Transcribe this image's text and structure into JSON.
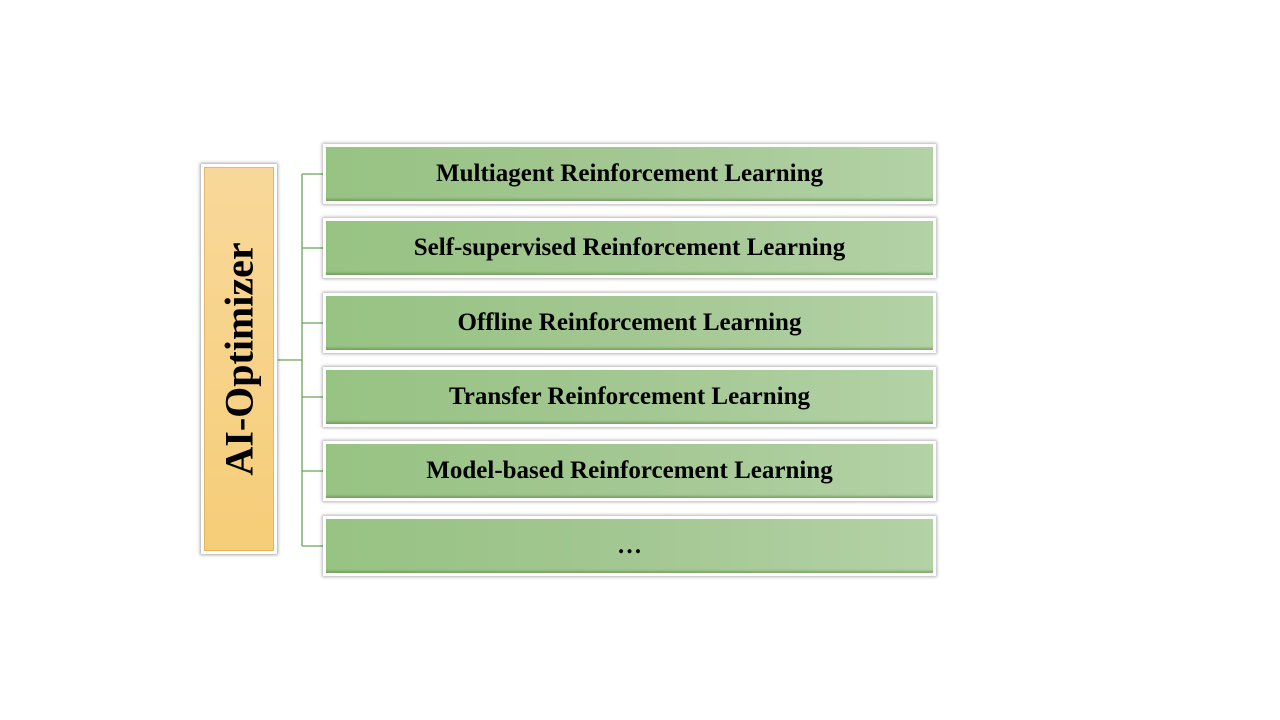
{
  "diagram": {
    "root": {
      "label": "AI-Optimizer"
    },
    "children": [
      {
        "label": "Multiagent Reinforcement Learning"
      },
      {
        "label": "Self-supervised Reinforcement Learning"
      },
      {
        "label": "Offline Reinforcement Learning"
      },
      {
        "label": "Transfer Reinforcement Learning"
      },
      {
        "label": "Model-based Reinforcement Learning"
      },
      {
        "label": "…"
      }
    ],
    "colors": {
      "root_fill": "#f6cd78",
      "child_fill": "#a3c792",
      "connector": "#6aa35a"
    }
  }
}
